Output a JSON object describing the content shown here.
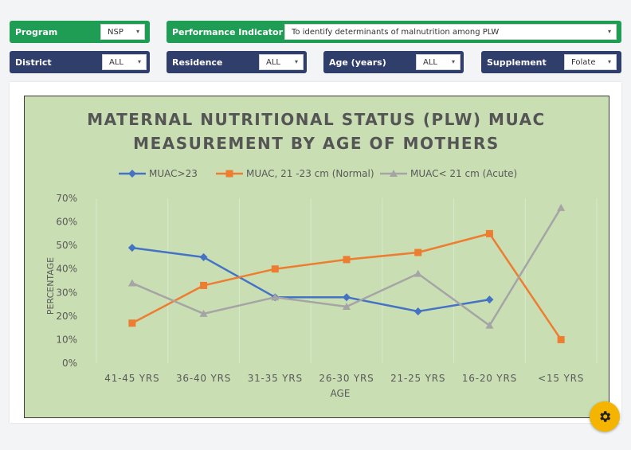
{
  "filters": {
    "program": {
      "label": "Program",
      "value": "NSP"
    },
    "indicator": {
      "label": "Performance Indicator",
      "value": "To identify determinants of malnutrition among PLW"
    },
    "district": {
      "label": "District",
      "value": "ALL"
    },
    "residence": {
      "label": "Residence",
      "value": "ALL"
    },
    "age": {
      "label": "Age (years)",
      "value": "ALL"
    },
    "supplement": {
      "label": "Supplement",
      "value": "Folate"
    }
  },
  "colors": {
    "green_header": "#1f9d55",
    "blue_header": "#2f3e6b",
    "chart_bg": "#c9dfb3",
    "gear": "#f4b400"
  },
  "icons": {
    "dropdown": "caret-down-icon",
    "settings": "gear-icon"
  },
  "chart_data": {
    "type": "line",
    "title_line1": "MATERNAL NUTRITIONAL STATUS (PLW) MUAC",
    "title_line2": "MEASUREMENT BY AGE OF MOTHERS",
    "xlabel": "AGE",
    "ylabel": "PERCENTAGE",
    "categories": [
      "41-45 YRS",
      "36-40 YRS",
      "31-35 YRS",
      "26-30 YRS",
      "21-25 YRS",
      "16-20 YRS",
      "<15 YRS"
    ],
    "yticks": [
      "0%",
      "10%",
      "20%",
      "30%",
      "40%",
      "50%",
      "60%",
      "70%"
    ],
    "ylim": [
      0,
      70
    ],
    "legend_position": "top",
    "grid": "vertical",
    "series": [
      {
        "name": "MUAC>23",
        "color": "#4472c4",
        "marker": "diamond",
        "values": [
          49,
          45,
          28,
          28,
          22,
          27,
          null
        ]
      },
      {
        "name": "MUAC, 21 -23 cm (Normal)",
        "color": "#ed7d31",
        "marker": "square",
        "values": [
          17,
          33,
          40,
          44,
          47,
          55,
          10
        ]
      },
      {
        "name": "MUAC< 21 cm (Acute)",
        "color": "#a5a5a5",
        "marker": "triangle",
        "values": [
          34,
          21,
          28,
          24,
          38,
          16,
          66
        ]
      }
    ]
  }
}
